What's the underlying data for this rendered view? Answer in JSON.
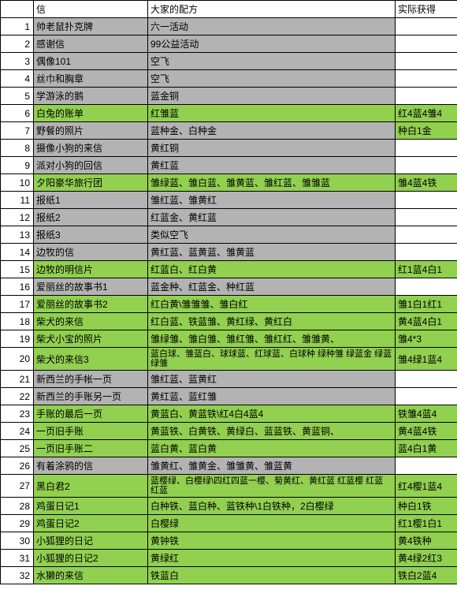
{
  "colors": {
    "grey": "#b3b3b3",
    "green": "#92d050",
    "white": "#ffffff"
  },
  "headers": {
    "col1": "",
    "col2": "信",
    "col3": "大家的配方",
    "col4": "实际获得"
  },
  "rows": [
    {
      "n": 1,
      "c1": "帅老鼠扑克牌",
      "c2": "六一活动",
      "c3": "",
      "bg": "grey",
      "bg3": "white"
    },
    {
      "n": 2,
      "c1": "感谢信",
      "c2": "99公益活动",
      "c3": "",
      "bg": "grey",
      "bg3": "white"
    },
    {
      "n": 3,
      "c1": "偶像101",
      "c2": "空飞",
      "c3": "",
      "bg": "grey",
      "bg3": "white"
    },
    {
      "n": 4,
      "c1": "丝巾和胸章",
      "c2": "空飞",
      "c3": "",
      "bg": "grey",
      "bg3": "white"
    },
    {
      "n": 5,
      "c1": "学游泳的鹅",
      "c2": "蓝金铜",
      "c3": "",
      "bg": "grey",
      "bg3": "white"
    },
    {
      "n": 6,
      "c1": "白兔的账单",
      "c2": "红雏蓝",
      "c3": "红4蓝4雏4",
      "bg": "green",
      "bg3": "green"
    },
    {
      "n": 7,
      "c1": "野餐的照片",
      "c2": "蓝种金、白种金",
      "c3": "种白1金",
      "bg": "grey",
      "bg3": "green"
    },
    {
      "n": 8,
      "c1": "摄像小狗的来信",
      "c2": "黄红铜",
      "c3": "",
      "bg": "grey",
      "bg3": "white"
    },
    {
      "n": 9,
      "c1": "派对小狗的回信",
      "c2": "黄红蓝",
      "c3": "",
      "bg": "grey",
      "bg3": "white"
    },
    {
      "n": 10,
      "c1": "夕阳豪华旅行团",
      "c2": "雏绿蓝、雏白蓝、雏黄蓝、雏红蓝、雏雏蓝",
      "c3": "雏4蓝4铁",
      "bg": "green",
      "bg3": "green"
    },
    {
      "n": 11,
      "c1": "报纸1",
      "c2": "雏红蓝、雏黄红",
      "c3": "",
      "bg": "grey",
      "bg3": "white"
    },
    {
      "n": 12,
      "c1": "报纸2",
      "c2": "红蓝金、黄红蓝",
      "c3": "",
      "bg": "grey",
      "bg3": "white"
    },
    {
      "n": 13,
      "c1": "报纸3",
      "c2": "类似空飞",
      "c3": "",
      "bg": "grey",
      "bg3": "white"
    },
    {
      "n": 14,
      "c1": "边牧的信",
      "c2": "黄红蓝、蓝黄蓝、雏黄蓝",
      "c3": "",
      "bg": "grey",
      "bg3": "white"
    },
    {
      "n": 15,
      "c1": "边牧的明信片",
      "c2": "红蓝白、红白黄",
      "c3": "红1蓝4白1",
      "bg": "green",
      "bg3": "green"
    },
    {
      "n": 16,
      "c1": "爱丽丝的故事书1",
      "c2": "蓝金种、红蓝金、种红蓝",
      "c3": "",
      "bg": "grey",
      "bg3": "white"
    },
    {
      "n": 17,
      "c1": "爱丽丝的故事书2",
      "c2": "红白黄\\雏雏雏、雏白红",
      "c3": "雏1白1红1",
      "bg": "green",
      "bg3": "green"
    },
    {
      "n": 18,
      "c1": "柴犬的来信",
      "c2": "红白蓝、铁蓝雏、黄红绿、黄红白",
      "c3": "黄4蓝4白1",
      "bg": "green",
      "bg3": "green"
    },
    {
      "n": 19,
      "c1": "柴犬小宝的照片",
      "c2": "雏绿雏、雏白雏、雏红雏、雏红红、雏雏黄、",
      "c3": "雏4*3",
      "bg": "green",
      "bg3": "green"
    },
    {
      "n": 20,
      "c1": "柴犬的来信3",
      "c2": "蓝白球、雏蓝白、球球蓝、红球蓝、白球种 绿种雏 绿蓝金 绿蓝 绿雏",
      "c3": "雏4绿1蓝4",
      "bg": "green",
      "bg3": "green",
      "wrap": true
    },
    {
      "n": 21,
      "c1": "新西兰的手帐一页",
      "c2": "雏红蓝、蓝黄红",
      "c3": "",
      "bg": "grey",
      "bg3": "white"
    },
    {
      "n": 22,
      "c1": "新西兰的手账另一页",
      "c2": "黄红蓝、蓝红雏",
      "c3": "",
      "bg": "grey",
      "bg3": "white"
    },
    {
      "n": 23,
      "c1": "手账的最后一页",
      "c2": "黄蓝白、黄蓝铁\\红4白4蓝4",
      "c3": "铁雏4蓝4",
      "bg": "green",
      "bg3": "green"
    },
    {
      "n": 24,
      "c1": "一页旧手账",
      "c2": "黄蓝铁、白黄铁、黄绿白、蓝蓝铁、黄蓝铜、",
      "c3": "黄4蓝4铁",
      "bg": "green",
      "bg3": "green"
    },
    {
      "n": 25,
      "c1": "一页旧手账二",
      "c2": "蓝白黄、蓝白黄",
      "c3": "蓝4白1黄",
      "bg": "green",
      "bg3": "green"
    },
    {
      "n": 26,
      "c1": "有着涂鸦的信",
      "c2": "雏黄红、雏黄金、雏雏黄、雏蓝黄",
      "c3": "",
      "bg": "grey",
      "bg3": "white"
    },
    {
      "n": 27,
      "c1": "黑白君2",
      "c2": "蓝樱绿、白樱绿\\四红四蓝一樱、菊黄红、黄红蓝 红蓝樱 红蓝 红蓝",
      "c3": "红4樱1蓝4",
      "bg": "green",
      "bg3": "green",
      "wrap": true
    },
    {
      "n": 28,
      "c1": "鸡蛋日记1",
      "c2": "白种铁、蓝白种、蓝铁种\\1白铁种，2白樱绿",
      "c3": "种白1铁",
      "bg": "green",
      "bg3": "green"
    },
    {
      "n": 29,
      "c1": "鸡蛋日记2",
      "c2": "白樱绿",
      "c3": "红1樱1白1",
      "bg": "green",
      "bg3": "green"
    },
    {
      "n": 30,
      "c1": "小狐狸的日记",
      "c2": "黄钟铁",
      "c3": "黄4铁种",
      "bg": "green",
      "bg3": "green"
    },
    {
      "n": 31,
      "c1": "小狐狸的日记2",
      "c2": "黄绿红",
      "c3": "黄4绿2红3",
      "bg": "green",
      "bg3": "green"
    },
    {
      "n": 32,
      "c1": "水獭的来信",
      "c2": "铁蓝白",
      "c3": "铁白2蓝4",
      "bg": "green",
      "bg3": "green"
    }
  ]
}
